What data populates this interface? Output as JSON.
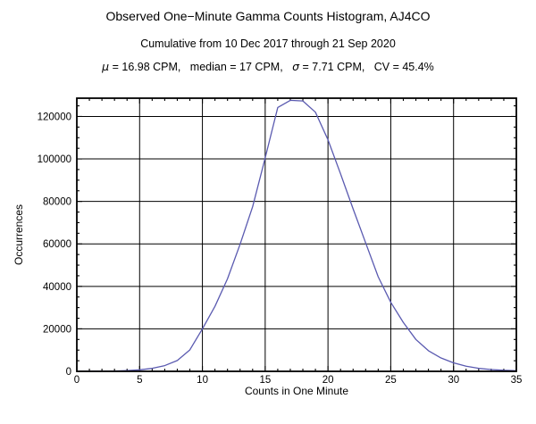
{
  "figure": {
    "stats_parts": {
      "mu_symbol": "μ",
      "after_mu": " = 16.98 CPM,   median = 17 CPM,   ",
      "sigma_symbol": "σ",
      "after_sigma": " = 7.71 CPM,   CV = 45.4%"
    }
  },
  "chart_data": {
    "type": "line",
    "title": "Observed One−Minute Gamma Counts Histogram, AJ4CO",
    "subtitle": "Cumulative from 10 Dec 2017 through 21 Sep 2020",
    "stats_text": "μ = 16.98 CPM, median = 17 CPM, σ = 7.71 CPM, CV = 45.4%",
    "xlabel": "Counts in One Minute",
    "ylabel": "Occurrences",
    "xlim": [
      0,
      35
    ],
    "ylim": [
      0,
      128600
    ],
    "grid": true,
    "legend": "none",
    "line_color": "#5a5ab0",
    "frame_color": "#000000",
    "grid_color": "#000000",
    "x_major_ticks": [
      0,
      5,
      10,
      15,
      20,
      25,
      30,
      35
    ],
    "x_tick_labels": [
      "0",
      "5",
      "10",
      "15",
      "20",
      "25",
      "30",
      "35"
    ],
    "x_minor_step": 1,
    "y_major_ticks": [
      0,
      20000,
      40000,
      60000,
      80000,
      100000,
      120000
    ],
    "y_tick_labels": [
      "0",
      "20000",
      "40000",
      "60000",
      "80000",
      "100000",
      "120000"
    ],
    "y_minor_step": 5000,
    "x": [
      0,
      1,
      2,
      3,
      4,
      5,
      6,
      7,
      8,
      9,
      10,
      11,
      12,
      13,
      14,
      15,
      16,
      17,
      18,
      19,
      20,
      21,
      22,
      23,
      24,
      25,
      26,
      27,
      28,
      29,
      30,
      31,
      32,
      33,
      34,
      35
    ],
    "y": [
      0,
      20,
      60,
      160,
      380,
      700,
      1400,
      2700,
      5100,
      10100,
      20000,
      30600,
      43600,
      59800,
      77500,
      100500,
      124200,
      127600,
      127300,
      122000,
      109000,
      93000,
      76500,
      60500,
      44500,
      32500,
      23000,
      15000,
      9700,
      6300,
      4000,
      2400,
      1400,
      840,
      500,
      300
    ]
  }
}
